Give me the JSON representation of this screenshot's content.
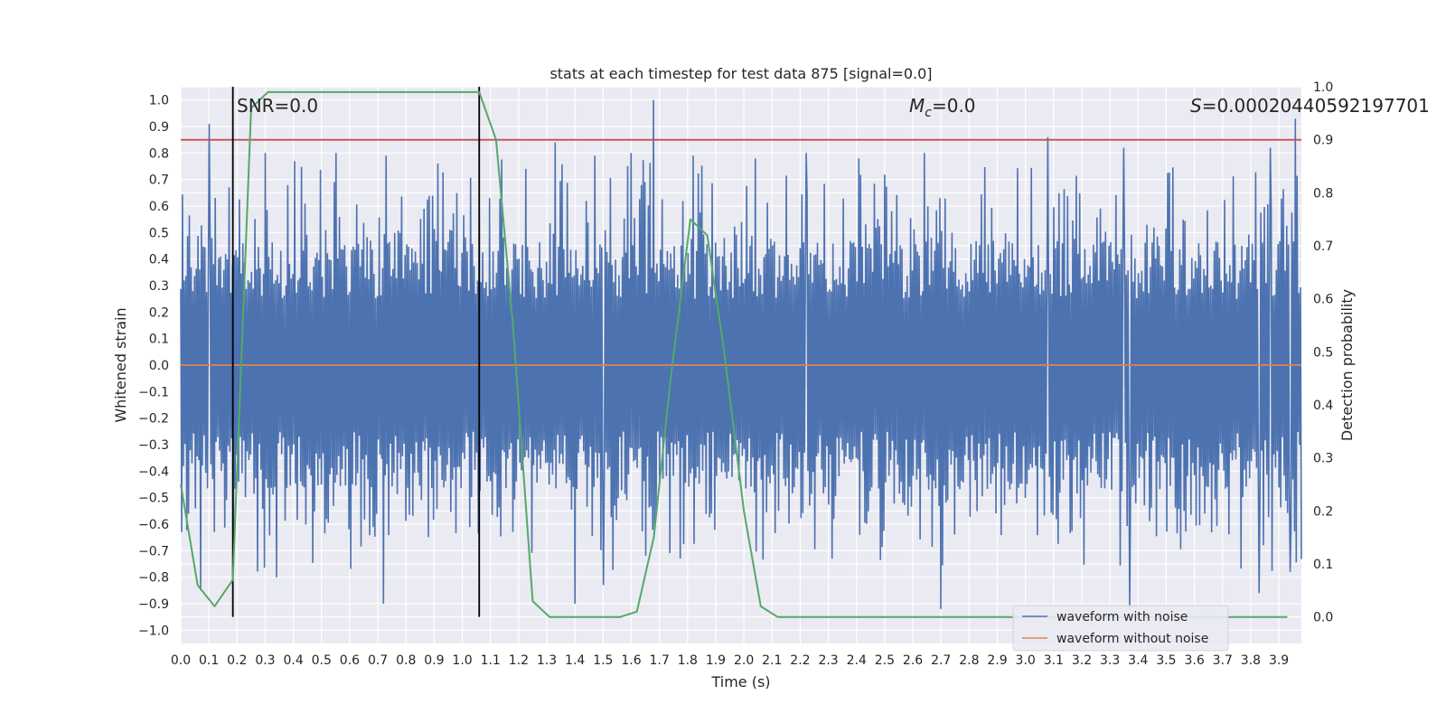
{
  "chart_data": {
    "type": "line",
    "title": "stats at each timestep for test data 875 [signal=0.0]",
    "xlabel": "Time (s)",
    "ylabel": "Whitened strain",
    "y2label": "Detection probability",
    "xlim": [
      0.0,
      3.98
    ],
    "ylim": [
      -1.05,
      1.05
    ],
    "y2lim": [
      -0.05,
      1.0
    ],
    "x_ticks": [
      "0.0",
      "0.1",
      "0.2",
      "0.3",
      "0.4",
      "0.5",
      "0.6",
      "0.7",
      "0.8",
      "0.9",
      "1.0",
      "1.1",
      "1.2",
      "1.3",
      "1.4",
      "1.5",
      "1.6",
      "1.7",
      "1.8",
      "1.9",
      "2.0",
      "2.1",
      "2.2",
      "2.3",
      "2.4",
      "2.5",
      "2.6",
      "2.7",
      "2.8",
      "2.9",
      "3.0",
      "3.1",
      "3.2",
      "3.3",
      "3.4",
      "3.5",
      "3.6",
      "3.7",
      "3.8",
      "3.9"
    ],
    "y_ticks": [
      "1.0",
      "0.9",
      "0.8",
      "0.7",
      "0.6",
      "0.5",
      "0.4",
      "0.3",
      "0.2",
      "0.1",
      "0.0",
      "−0.1",
      "−0.2",
      "−0.3",
      "−0.4",
      "−0.5",
      "−0.6",
      "−0.7",
      "−0.8",
      "−0.9",
      "−1.0"
    ],
    "y2_ticks": [
      "1.0",
      "0.9",
      "0.8",
      "0.7",
      "0.6",
      "0.5",
      "0.4",
      "0.3",
      "0.2",
      "0.1",
      "0.0"
    ],
    "annotations": {
      "snr": "SNR=0.0",
      "mc_symbol": "M",
      "mc_sub": "c",
      "mc_value": "=0.0",
      "s_symbol": "S",
      "s_value": "=0.00020440592197701⁠"
    },
    "vertical_lines_x": [
      0.185,
      1.06
    ],
    "threshold_prob": 0.9,
    "series": [
      {
        "name": "waveform with noise",
        "color": "#4c72b0",
        "note": "dense noise trace, amplitude mostly within ±0.45 with spikes to ±1.0",
        "spikes_up": [
          [
            0.1,
            0.91
          ],
          [
            0.3,
            0.8
          ],
          [
            0.55,
            0.8
          ],
          [
            0.73,
            0.79
          ],
          [
            1.33,
            0.84
          ],
          [
            1.47,
            0.79
          ],
          [
            1.6,
            0.8
          ],
          [
            1.68,
            1.0
          ],
          [
            1.82,
            0.79
          ],
          [
            2.22,
            0.8
          ],
          [
            2.64,
            0.8
          ],
          [
            3.08,
            0.86
          ],
          [
            3.35,
            0.82
          ],
          [
            3.87,
            0.82
          ],
          [
            3.96,
            0.93
          ]
        ],
        "spikes_down": [
          [
            0.07,
            -0.85
          ],
          [
            0.34,
            -0.8
          ],
          [
            0.72,
            -0.9
          ],
          [
            1.4,
            -0.9
          ],
          [
            1.5,
            -0.83
          ],
          [
            2.7,
            -0.92
          ],
          [
            3.37,
            -0.92
          ],
          [
            3.83,
            -0.86
          ],
          [
            3.94,
            -0.78
          ]
        ]
      },
      {
        "name": "waveform without noise",
        "color": "#dd8452",
        "x": [
          0.0,
          3.98
        ],
        "values": [
          0.0,
          0.0
        ]
      },
      {
        "name": "detection probability",
        "axis": "right",
        "color": "#55a868",
        "x": [
          0.0,
          0.06,
          0.12,
          0.185,
          0.25,
          0.31,
          0.37,
          1.0,
          1.06,
          1.12,
          1.18,
          1.25,
          1.31,
          1.37,
          1.44,
          1.5,
          1.56,
          1.62,
          1.68,
          1.74,
          1.81,
          1.87,
          1.93,
          2.0,
          2.06,
          2.12,
          2.18,
          3.93
        ],
        "values": [
          0.25,
          0.06,
          0.02,
          0.07,
          0.96,
          0.99,
          0.99,
          0.99,
          0.99,
          0.9,
          0.55,
          0.03,
          0.0,
          0.0,
          0.0,
          0.0,
          0.0,
          0.01,
          0.15,
          0.45,
          0.75,
          0.72,
          0.5,
          0.2,
          0.02,
          0.0,
          0.0,
          0.0
        ]
      }
    ],
    "legend": {
      "position": "lower-right",
      "entries": [
        {
          "label": "waveform with noise",
          "color": "#4c72b0"
        },
        {
          "label": "waveform without noise",
          "color": "#dd8452"
        }
      ]
    },
    "colors": {
      "background": "#eaeaf2",
      "grid": "#ffffff",
      "threshold": "#c44e52",
      "vline": "#000000"
    }
  }
}
